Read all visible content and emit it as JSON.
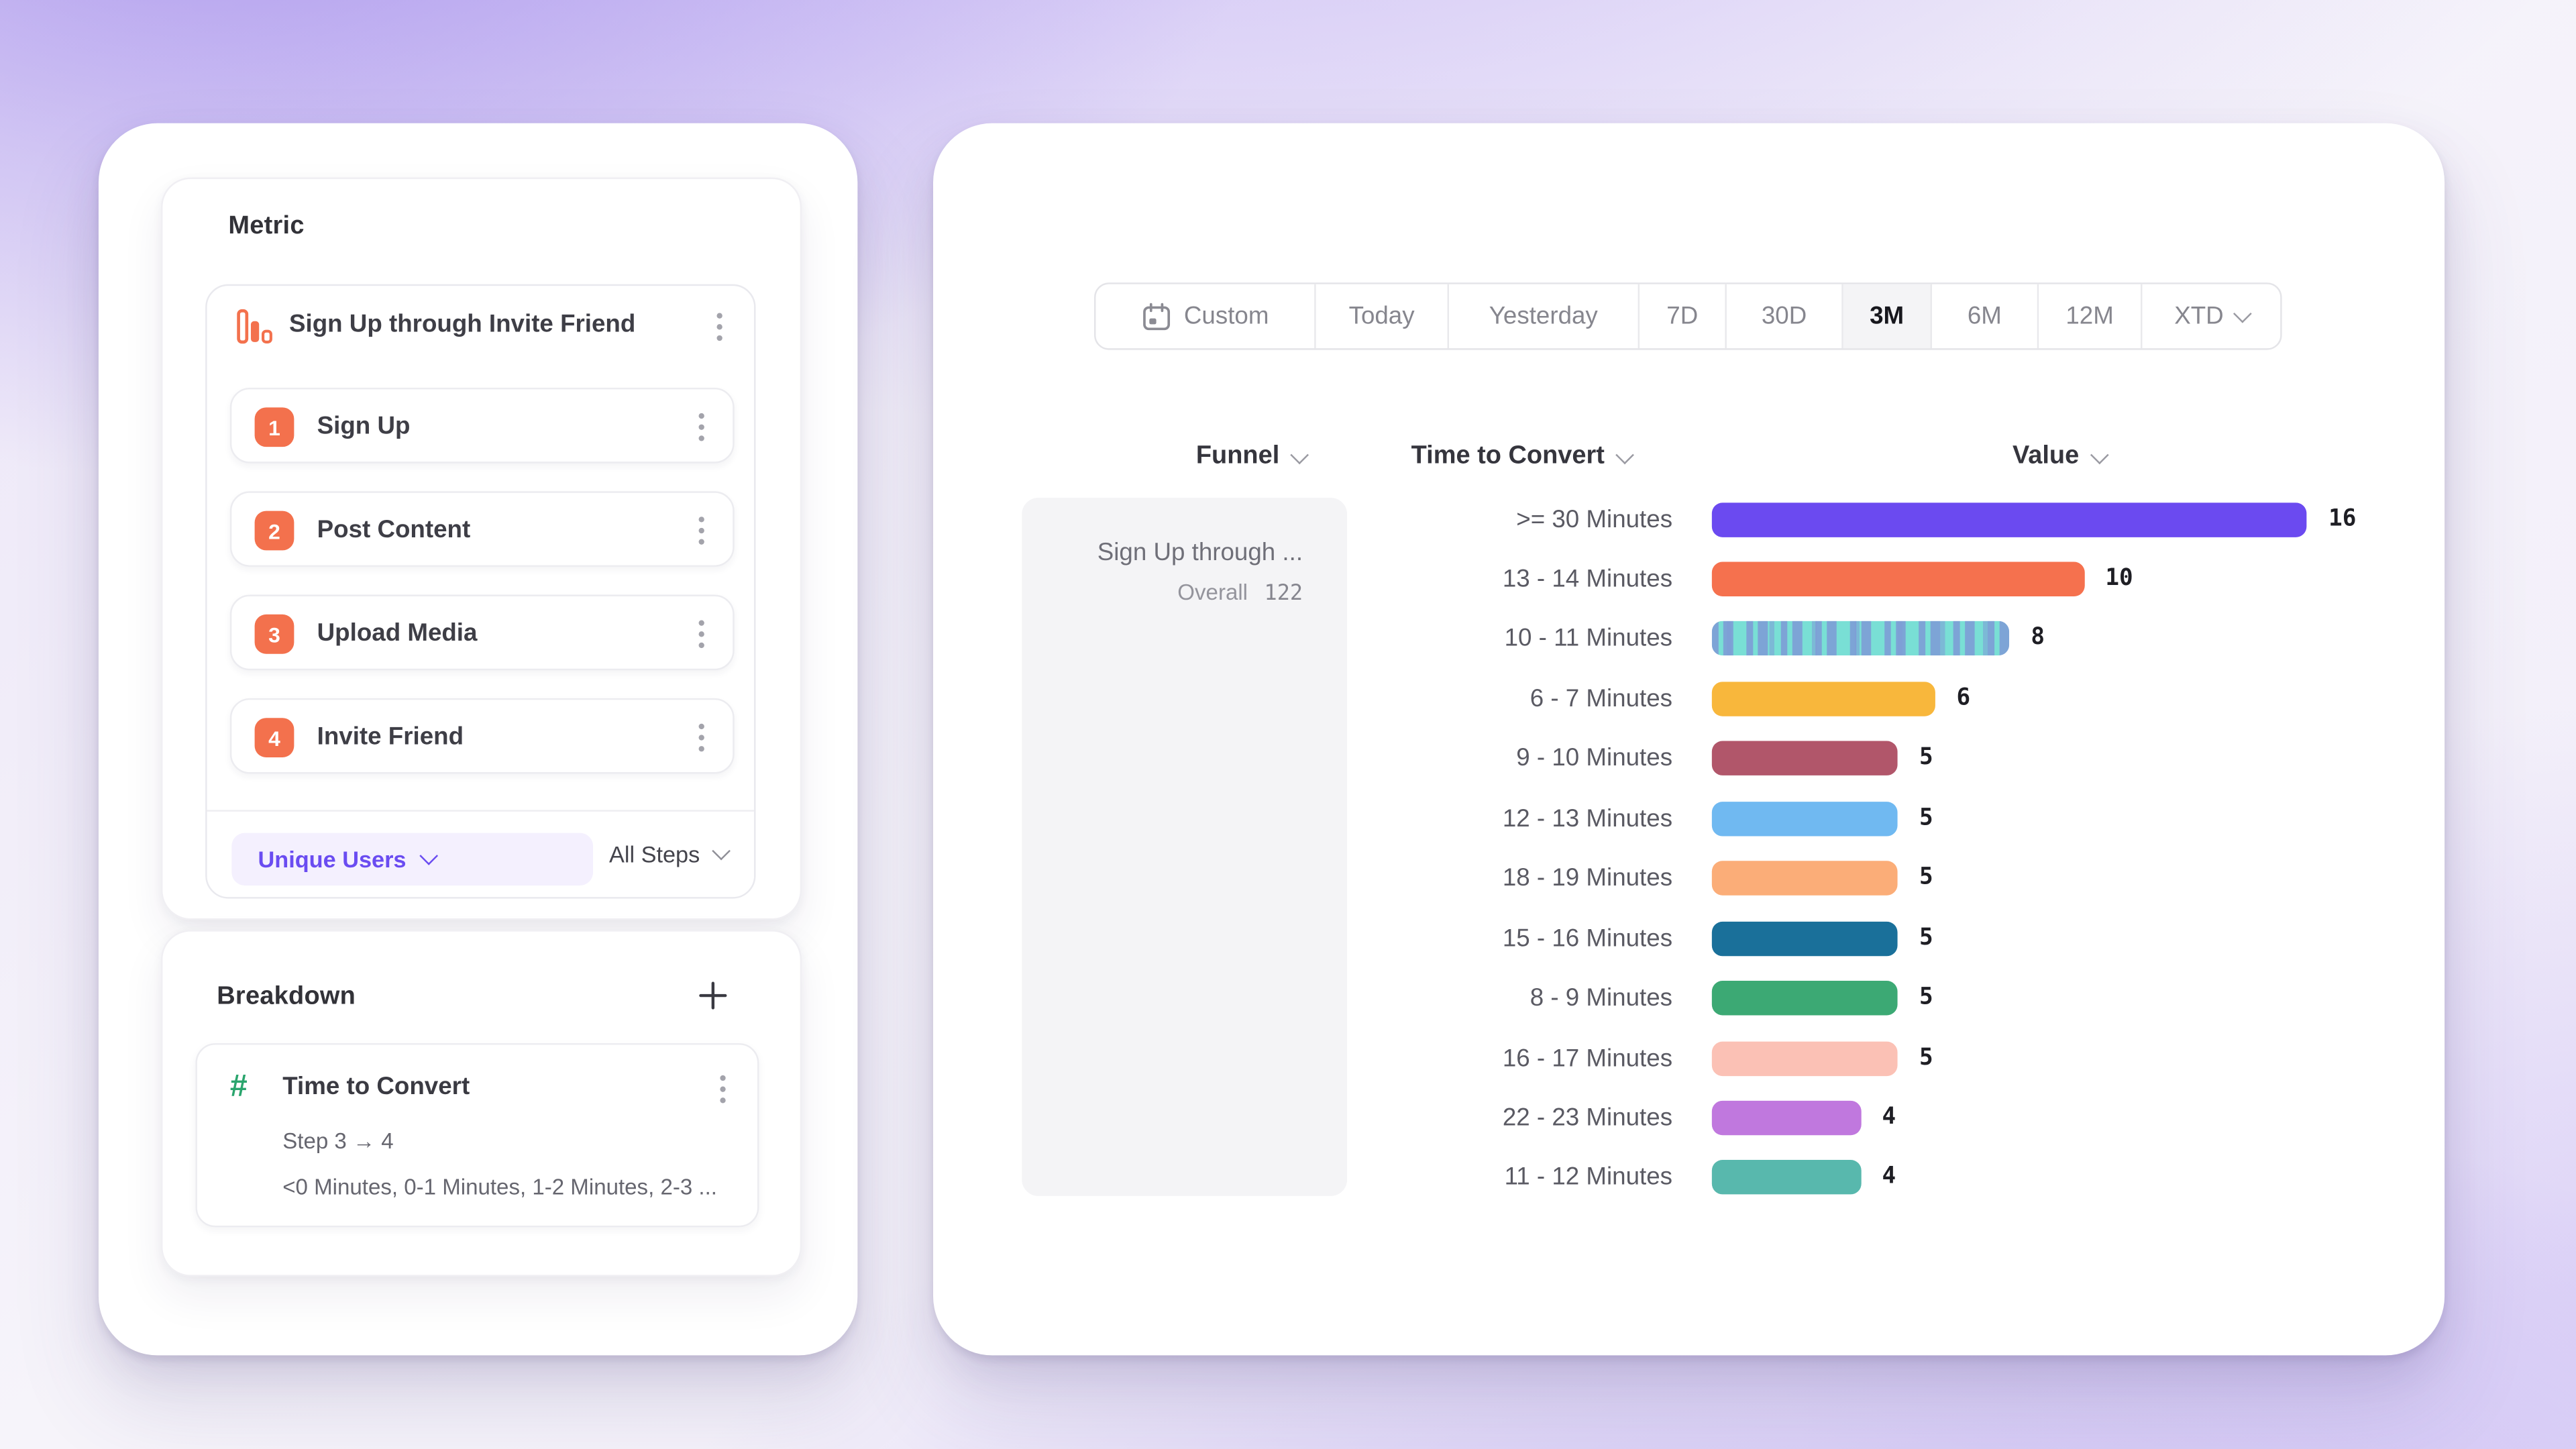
{
  "left_panel": {
    "metric_title": "Metric",
    "funnel_title": "Sign Up through Invite Friend",
    "steps": [
      {
        "index": "1",
        "label": "Sign Up"
      },
      {
        "index": "2",
        "label": "Post Content"
      },
      {
        "index": "3",
        "label": "Upload Media"
      },
      {
        "index": "4",
        "label": "Invite Friend"
      }
    ],
    "counting_selector": "Unique Users",
    "steps_selector": "All Steps",
    "breakdown_title": "Breakdown",
    "breakdown_item": {
      "name": "Time to Convert",
      "step_range": "Step 3 → 4",
      "buckets_preview": "<0 Minutes, 0-1 Minutes, 1-2 Minutes, 2-3 ..."
    },
    "accent_orange": "#F3714D",
    "accent_green": "#2AA56D",
    "accent_purple": "#6A4CF1"
  },
  "toolbar": {
    "items": [
      "Custom",
      "Today",
      "Yesterday",
      "7D",
      "30D",
      "3M",
      "6M",
      "12M",
      "XTD"
    ],
    "selected": "3M",
    "item_with_calendar_icon": "Custom",
    "item_with_chevron": "XTD"
  },
  "table": {
    "funnel_header": "Funnel",
    "breakdown_header": "Time to Convert",
    "value_header": "Value",
    "funnel_name": "Sign Up through ...",
    "overall_label": "Overall",
    "overall_value": "122"
  },
  "icons": {
    "metric": "bar-chart-icon",
    "breakdown": "hash-icon",
    "date": "calendar-icon",
    "menus": "kebab-menu-icon",
    "add": "plus-icon",
    "dropdowns": "chevron-down-icon"
  },
  "chart_data": {
    "type": "bar",
    "orientation": "horizontal",
    "title": "",
    "xlabel": "Value",
    "ylabel": "Time to Convert",
    "categories": [
      ">= 30 Minutes",
      "13 - 14 Minutes",
      "10 - 11 Minutes",
      "6 - 7 Minutes",
      "9 - 10 Minutes",
      "12 - 13 Minutes",
      "18 - 19 Minutes",
      "15 - 16 Minutes",
      "8 - 9 Minutes",
      "16 - 17 Minutes",
      "22 - 23 Minutes",
      "11 - 12 Minutes"
    ],
    "values": [
      16,
      10,
      8,
      6,
      5,
      5,
      5,
      5,
      5,
      5,
      4,
      4
    ],
    "colors": [
      "#6B4AF0",
      "#F5714E",
      "#79DFD5",
      "#F8B73C",
      "#B1566A",
      "#70B9F1",
      "#FBAD78",
      "#1A709A",
      "#3CA974",
      "#FBC1B5",
      "#C078DE",
      "#58B8AD"
    ],
    "patterned_index": 2,
    "pattern_stripe_color": "#7E9AD6",
    "xlim": [
      0,
      16
    ],
    "grid": "off",
    "legend": "none",
    "value_labels_shown": true
  }
}
